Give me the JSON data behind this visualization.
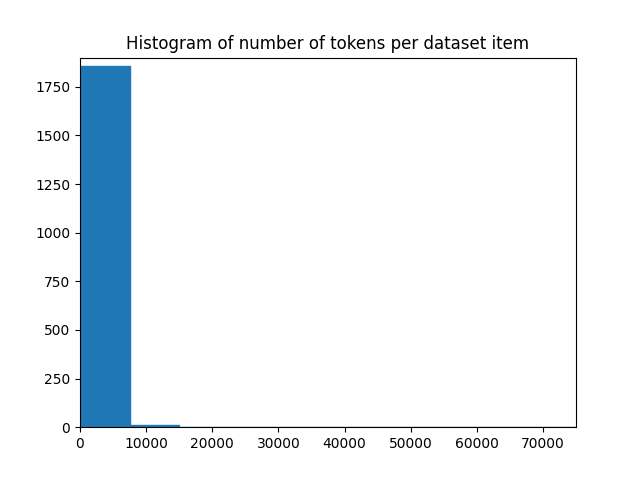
{
  "title": "Histogram of number of tokens per dataset item",
  "bar_color": "#1f77b4",
  "xlim": [
    0,
    75000
  ],
  "ylim": [
    0,
    1900
  ],
  "bar_edges": [
    0,
    7500,
    15000,
    22500,
    30000,
    37500,
    45000,
    52500,
    60000,
    67500,
    75000
  ],
  "bar_heights": [
    1856,
    10,
    0,
    0,
    0,
    0,
    0,
    0,
    0,
    0
  ],
  "xticks": [
    0,
    10000,
    20000,
    30000,
    40000,
    50000,
    60000,
    70000
  ],
  "figsize": [
    6.4,
    4.8
  ],
  "dpi": 100
}
